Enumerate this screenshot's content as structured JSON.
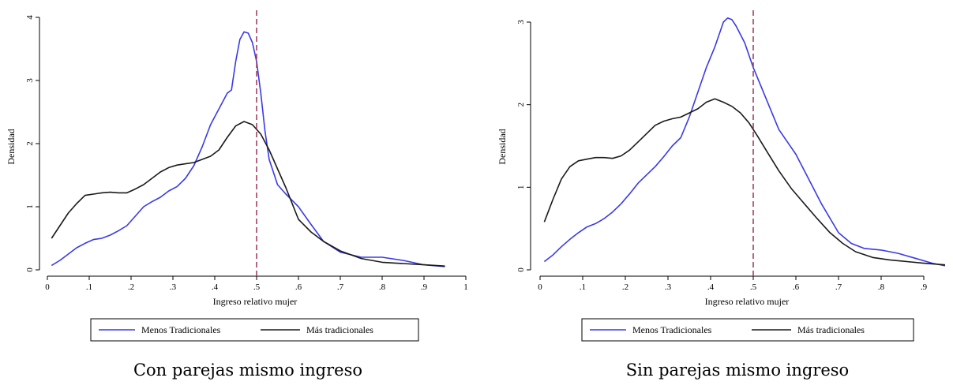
{
  "colors": {
    "menos": "#3a3ae8",
    "mas": "#1a1a1a",
    "refline": "#a3415e"
  },
  "chart_data": [
    {
      "type": "line",
      "caption": "Con parejas mismo ingreso",
      "xlabel": "Ingreso relativo mujer",
      "ylabel": "Densidad",
      "xlim": [
        0,
        1
      ],
      "ylim": [
        0,
        4
      ],
      "xticks": [
        0,
        0.1,
        0.2,
        0.3,
        0.4,
        0.5,
        0.6,
        0.7,
        0.8,
        0.9,
        1
      ],
      "xtick_labels": [
        "0",
        ".1",
        ".2",
        ".3",
        ".4",
        ".5",
        ".6",
        ".7",
        ".8",
        ".9",
        "1"
      ],
      "yticks": [
        0,
        1,
        2,
        3,
        4
      ],
      "ytick_labels": [
        "0",
        "1",
        "2",
        "3",
        "4"
      ],
      "reference_line_x": 0.5,
      "legend_position": "bottom",
      "series": [
        {
          "name": "Menos Tradicionales",
          "color": "#3a3ae8",
          "x": [
            0.01,
            0.03,
            0.05,
            0.07,
            0.09,
            0.11,
            0.13,
            0.15,
            0.17,
            0.19,
            0.21,
            0.23,
            0.25,
            0.27,
            0.29,
            0.31,
            0.33,
            0.35,
            0.37,
            0.39,
            0.41,
            0.43,
            0.44,
            0.45,
            0.46,
            0.47,
            0.48,
            0.49,
            0.5,
            0.51,
            0.52,
            0.53,
            0.55,
            0.57,
            0.6,
            0.63,
            0.66,
            0.7,
            0.75,
            0.8,
            0.85,
            0.9,
            0.95
          ],
          "y": [
            0.07,
            0.15,
            0.25,
            0.35,
            0.42,
            0.48,
            0.5,
            0.55,
            0.62,
            0.7,
            0.85,
            1.0,
            1.08,
            1.15,
            1.25,
            1.32,
            1.45,
            1.65,
            1.95,
            2.3,
            2.55,
            2.8,
            2.85,
            3.3,
            3.65,
            3.77,
            3.75,
            3.6,
            3.3,
            2.8,
            2.2,
            1.75,
            1.35,
            1.2,
            1.0,
            0.72,
            0.45,
            0.28,
            0.2,
            0.2,
            0.15,
            0.08,
            0.05
          ]
        },
        {
          "name": "Más tradicionales",
          "color": "#1a1a1a",
          "x": [
            0.01,
            0.03,
            0.05,
            0.07,
            0.09,
            0.11,
            0.13,
            0.15,
            0.17,
            0.19,
            0.21,
            0.23,
            0.25,
            0.27,
            0.29,
            0.31,
            0.33,
            0.35,
            0.37,
            0.39,
            0.41,
            0.43,
            0.45,
            0.47,
            0.49,
            0.51,
            0.53,
            0.55,
            0.57,
            0.6,
            0.63,
            0.66,
            0.7,
            0.75,
            0.8,
            0.85,
            0.9,
            0.95
          ],
          "y": [
            0.5,
            0.7,
            0.9,
            1.05,
            1.18,
            1.2,
            1.22,
            1.23,
            1.22,
            1.22,
            1.28,
            1.35,
            1.45,
            1.55,
            1.62,
            1.66,
            1.68,
            1.7,
            1.75,
            1.8,
            1.9,
            2.1,
            2.28,
            2.35,
            2.3,
            2.15,
            1.9,
            1.6,
            1.3,
            0.8,
            0.6,
            0.45,
            0.3,
            0.18,
            0.12,
            0.1,
            0.08,
            0.06
          ]
        }
      ]
    },
    {
      "type": "line",
      "caption": "Sin parejas mismo ingreso",
      "xlabel": "Ingreso relativo mujer",
      "ylabel": "Densidad",
      "xlim": [
        0,
        0.95
      ],
      "ylim": [
        0,
        3
      ],
      "xticks": [
        0,
        0.1,
        0.2,
        0.3,
        0.4,
        0.5,
        0.6,
        0.7,
        0.8,
        0.9
      ],
      "xtick_labels": [
        "0",
        ".1",
        ".2",
        ".3",
        ".4",
        ".5",
        ".6",
        ".7",
        ".8",
        ".9"
      ],
      "yticks": [
        0,
        1,
        2,
        3
      ],
      "ytick_labels": [
        "0",
        "1",
        "2",
        "3"
      ],
      "reference_line_x": 0.5,
      "legend_position": "bottom",
      "series": [
        {
          "name": "Menos Tradicionales",
          "color": "#3a3ae8",
          "x": [
            0.01,
            0.03,
            0.05,
            0.07,
            0.09,
            0.11,
            0.13,
            0.15,
            0.17,
            0.19,
            0.21,
            0.23,
            0.25,
            0.27,
            0.29,
            0.31,
            0.33,
            0.35,
            0.37,
            0.39,
            0.41,
            0.42,
            0.43,
            0.44,
            0.45,
            0.46,
            0.48,
            0.5,
            0.52,
            0.54,
            0.56,
            0.58,
            0.6,
            0.63,
            0.66,
            0.7,
            0.73,
            0.76,
            0.8,
            0.84,
            0.88,
            0.92,
            0.95
          ],
          "y": [
            0.1,
            0.18,
            0.28,
            0.37,
            0.45,
            0.52,
            0.56,
            0.62,
            0.7,
            0.8,
            0.92,
            1.05,
            1.15,
            1.25,
            1.37,
            1.5,
            1.6,
            1.85,
            2.15,
            2.45,
            2.7,
            2.85,
            3.0,
            3.05,
            3.03,
            2.95,
            2.75,
            2.45,
            2.2,
            1.95,
            1.7,
            1.55,
            1.4,
            1.1,
            0.8,
            0.45,
            0.32,
            0.26,
            0.24,
            0.2,
            0.14,
            0.08,
            0.05
          ]
        },
        {
          "name": "Más tradicionales",
          "color": "#1a1a1a",
          "x": [
            0.01,
            0.03,
            0.05,
            0.07,
            0.09,
            0.11,
            0.13,
            0.15,
            0.17,
            0.19,
            0.21,
            0.23,
            0.25,
            0.27,
            0.29,
            0.31,
            0.33,
            0.35,
            0.37,
            0.39,
            0.41,
            0.43,
            0.45,
            0.47,
            0.49,
            0.51,
            0.53,
            0.56,
            0.59,
            0.62,
            0.65,
            0.68,
            0.71,
            0.74,
            0.78,
            0.82,
            0.86,
            0.9,
            0.95
          ],
          "y": [
            0.58,
            0.85,
            1.1,
            1.25,
            1.32,
            1.34,
            1.36,
            1.36,
            1.35,
            1.38,
            1.45,
            1.55,
            1.65,
            1.75,
            1.8,
            1.83,
            1.85,
            1.9,
            1.95,
            2.03,
            2.07,
            2.03,
            1.98,
            1.9,
            1.78,
            1.62,
            1.45,
            1.2,
            0.98,
            0.8,
            0.62,
            0.45,
            0.32,
            0.22,
            0.15,
            0.12,
            0.1,
            0.08,
            0.06
          ]
        }
      ]
    }
  ]
}
